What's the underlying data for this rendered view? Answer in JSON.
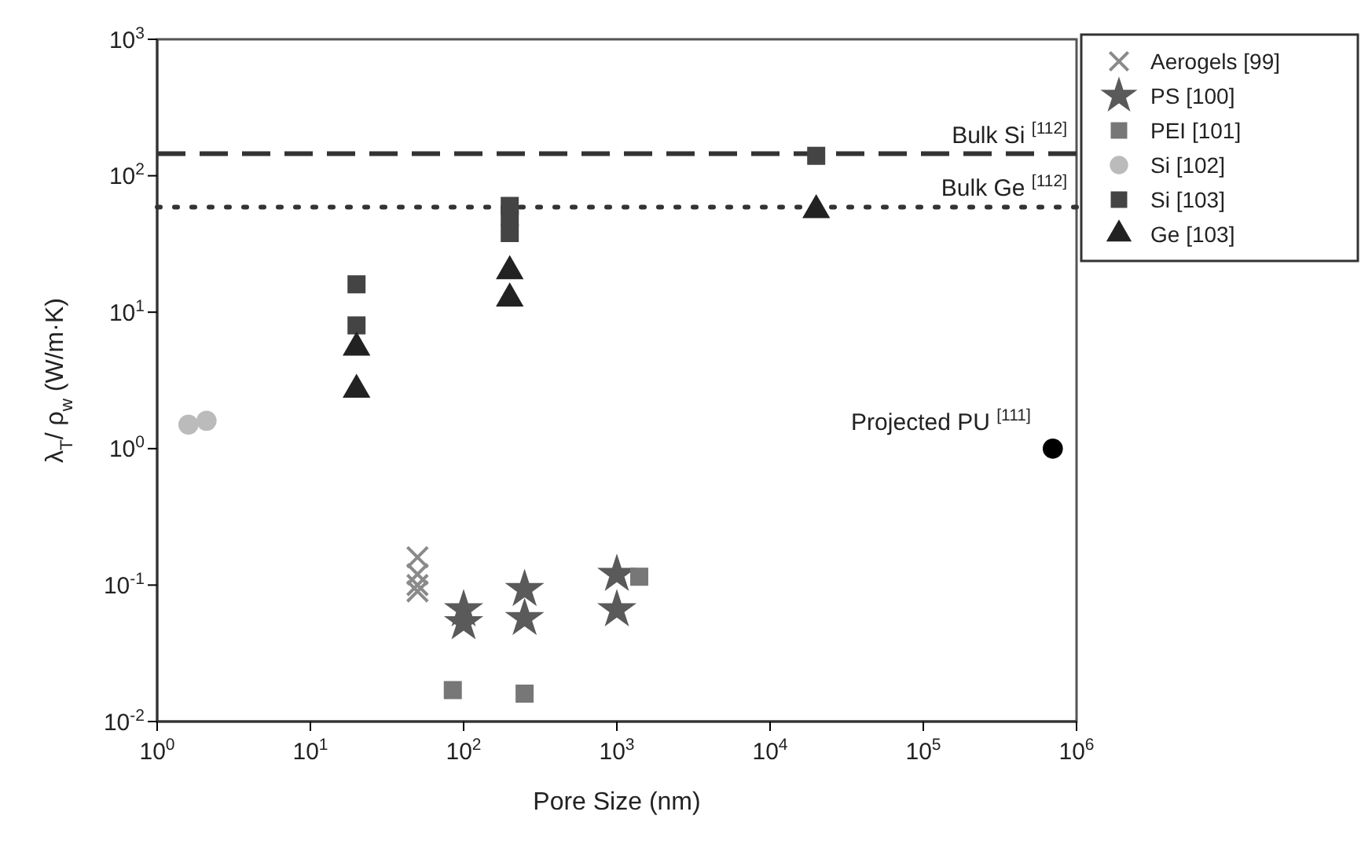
{
  "chart_data": {
    "type": "scatter",
    "xlabel": "Pore Size (nm)",
    "ylabel": "λ$_{T}$/ ρ$_{w}$ (W/m·K)",
    "log": "xy",
    "xlim": [
      1,
      1000000
    ],
    "ylim": [
      0.01,
      1000
    ],
    "xticks": [
      {
        "value": 1,
        "label": "10$^{0}$"
      },
      {
        "value": 10,
        "label": "10$^{1}$"
      },
      {
        "value": 100,
        "label": "10$^{2}$"
      },
      {
        "value": 1000,
        "label": "10$^{3}$"
      },
      {
        "value": 10000,
        "label": "10$^{4}$"
      },
      {
        "value": 100000,
        "label": "10$^{5}$"
      },
      {
        "value": 1000000,
        "label": "10$^{6}$"
      }
    ],
    "yticks": [
      {
        "value": 0.01,
        "label": "10$^{-2}$"
      },
      {
        "value": 0.1,
        "label": "10$^{-1}$"
      },
      {
        "value": 1,
        "label": "10$^{0}$"
      },
      {
        "value": 10,
        "label": "10$^{1}$"
      },
      {
        "value": 100,
        "label": "10$^{2}$"
      },
      {
        "value": 1000,
        "label": "10$^{3}$"
      }
    ],
    "grid": false,
    "legend": "top right",
    "series": [
      {
        "name": "Aerogels [99]",
        "color": "#8a8a8a",
        "marker": "cross",
        "x": [
          50,
          50,
          50,
          50
        ],
        "values": [
          0.16,
          0.12,
          0.1,
          0.09
        ]
      },
      {
        "name": "PS [100]",
        "color": "#5a5a5a",
        "marker": "star",
        "x": [
          100,
          100,
          250,
          250,
          1000,
          1000
        ],
        "values": [
          0.066,
          0.053,
          0.093,
          0.057,
          0.12,
          0.066
        ]
      },
      {
        "name": "PEI [101]",
        "color": "#777777",
        "marker": "square",
        "x": [
          85,
          250,
          1400
        ],
        "values": [
          0.017,
          0.016,
          0.115
        ]
      },
      {
        "name": "Si [102]",
        "color": "#bbbbbb",
        "marker": "circle",
        "x": [
          1.6,
          2.1
        ],
        "values": [
          1.5,
          1.6
        ]
      },
      {
        "name": "Si [103]",
        "color": "#444444",
        "marker": "square",
        "x": [
          20,
          20,
          200,
          200,
          200,
          20000
        ],
        "values": [
          16,
          8,
          60,
          50,
          38,
          140
        ]
      },
      {
        "name": "Ge [103]",
        "color": "#222222",
        "marker": "triangle",
        "x": [
          20,
          20,
          200,
          200,
          20000
        ],
        "values": [
          5.5,
          2.7,
          20,
          12.6,
          56
        ]
      },
      {
        "color": "#000000",
        "marker": "circle",
        "x": [
          700000
        ],
        "values": [
          1
        ]
      }
    ],
    "ref_lines": [
      {
        "axis": "y",
        "value": 145,
        "label": "Bulk Si $^{[112]}$",
        "line_style": "dashed",
        "color": "#333333"
      },
      {
        "axis": "y",
        "value": 59,
        "label": "Bulk Ge $^{[112]}$",
        "line_style": "dotted",
        "color": "#333333"
      }
    ],
    "annotations": [
      {
        "text": "Projected PU $^{[111]}$",
        "x": 700000,
        "y": 1
      }
    ]
  }
}
